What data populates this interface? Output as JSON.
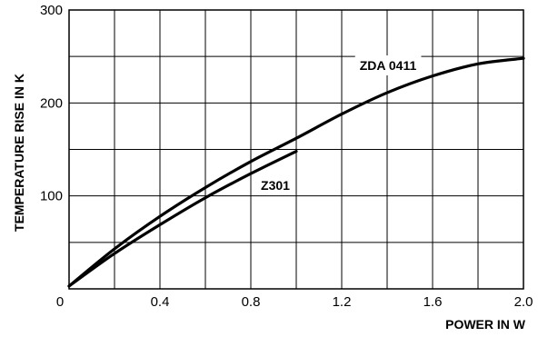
{
  "chart_data": {
    "type": "line",
    "xlabel": "POWER IN W",
    "ylabel": "TEMPERATURE RISE IN K",
    "xlim": [
      0,
      2.0
    ],
    "ylim": [
      0,
      300
    ],
    "x_ticks": [
      "0",
      "0.4",
      "0.8",
      "1.2",
      "1.6",
      "2.0"
    ],
    "y_ticks": [
      "0",
      "100",
      "200",
      "300"
    ],
    "grid": true,
    "series": [
      {
        "name": "ZDA 0411",
        "x": [
          0,
          0.2,
          0.4,
          0.6,
          0.8,
          1.0,
          1.2,
          1.4,
          1.6,
          1.8,
          2.0
        ],
        "y": [
          3,
          43,
          78,
          109,
          137,
          162,
          188,
          211,
          229,
          242,
          248
        ]
      },
      {
        "name": "Z301",
        "x": [
          0,
          0.2,
          0.4,
          0.6,
          0.8,
          1.0
        ],
        "y": [
          3,
          38,
          69,
          98,
          124,
          148
        ]
      }
    ]
  }
}
